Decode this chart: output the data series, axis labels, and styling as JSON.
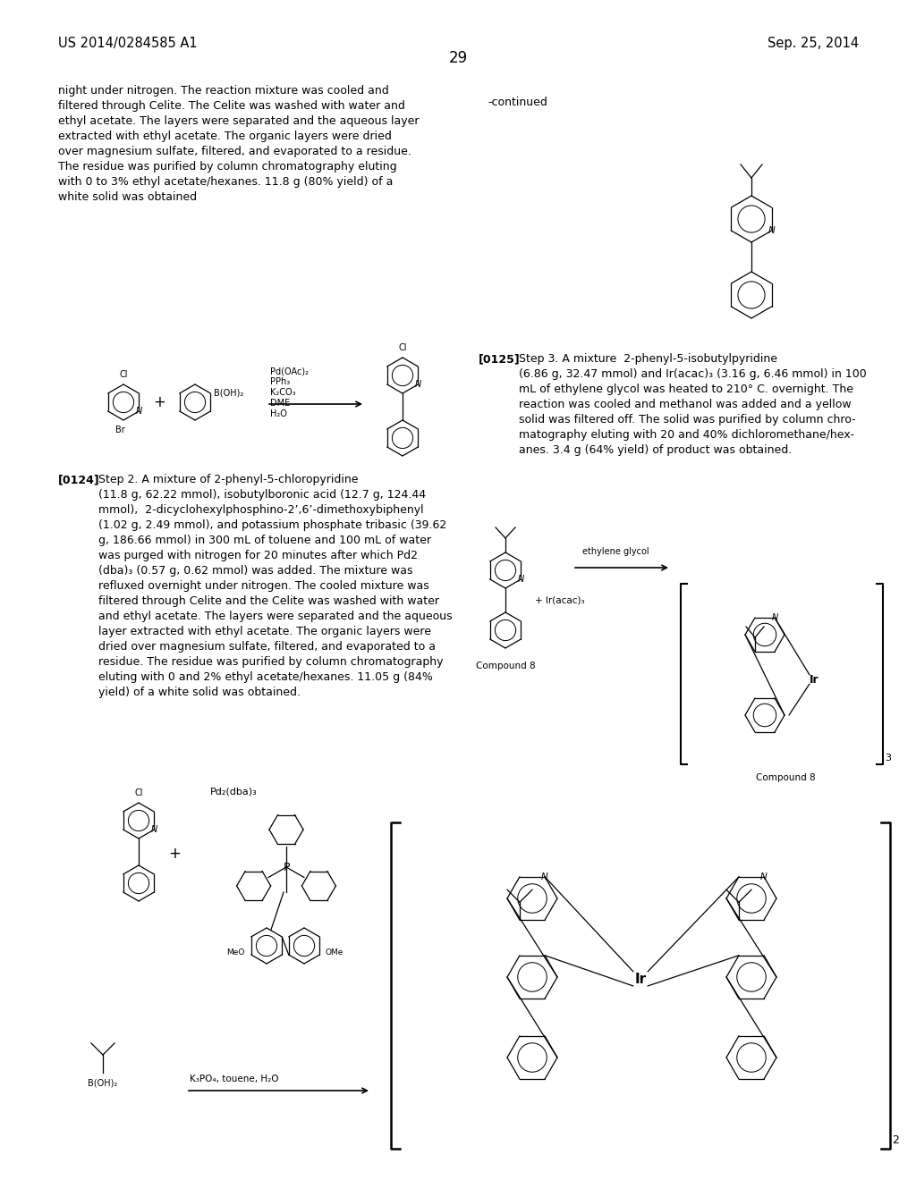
{
  "page_header_left": "US 2014/0284585 A1",
  "page_header_right": "Sep. 25, 2014",
  "page_number": "29",
  "continued_label": "-continued",
  "background_color": "#ffffff",
  "text_color": "#000000",
  "font_size_body": 9.0,
  "font_size_header": 10.0,
  "font_size_page_num": 12,
  "paragraph_top_text": "night under nitrogen. The reaction mixture was cooled and\nfiltered through Celite. The Celite was washed with water and\nethyl acetate. The layers were separated and the aqueous layer\nextracted with ethyl acetate. The organic layers were dried\nover magnesium sulfate, filtered, and evaporated to a residue.\nThe residue was purified by column chromatography eluting\nwith 0 to 3% ethyl acetate/hexanes. 11.8 g (80% yield) of a\nwhite solid was obtained",
  "paragraph_0124_text": "Step 2. A mixture of 2-phenyl-5-chloropyridine\n(11.8 g, 62.22 mmol), isobutylboronic acid (12.7 g, 124.44\nmmol),  2-dicyclohexylphosphino-2’,6’-dimethoxybiphenyl\n(1.02 g, 2.49 mmol), and potassium phosphate tribasic (39.62\ng, 186.66 mmol) in 300 mL of toluene and 100 mL of water\nwas purged with nitrogen for 20 minutes after which Pd2\n(dba)₃ (0.57 g, 0.62 mmol) was added. The mixture was\nrefluxed overnight under nitrogen. The cooled mixture was\nfiltered through Celite and the Celite was washed with water\nand ethyl acetate. The layers were separated and the aqueous\nlayer extracted with ethyl acetate. The organic layers were\ndried over magnesium sulfate, filtered, and evaporated to a\nresidue. The residue was purified by column chromatography\neluting with 0 and 2% ethyl acetate/hexanes. 11.05 g (84%\nyield) of a white solid was obtained.",
  "paragraph_0125_text": "Step 3. A mixture  2-phenyl-5-isobutylpyridine\n(6.86 g, 32.47 mmol) and Ir(acac)₃ (3.16 g, 6.46 mmol) in 100\nmL of ethylene glycol was heated to 210° C. overnight. The\nreaction was cooled and methanol was added and a yellow\nsolid was filtered off. The solid was purified by column chro-\nmatography eluting with 20 and 40% dichloromethane/hex-\nanes. 3.4 g (64% yield) of product was obtained.",
  "compound8_label": "Compound 8",
  "compound8_label2": "Compound 8"
}
